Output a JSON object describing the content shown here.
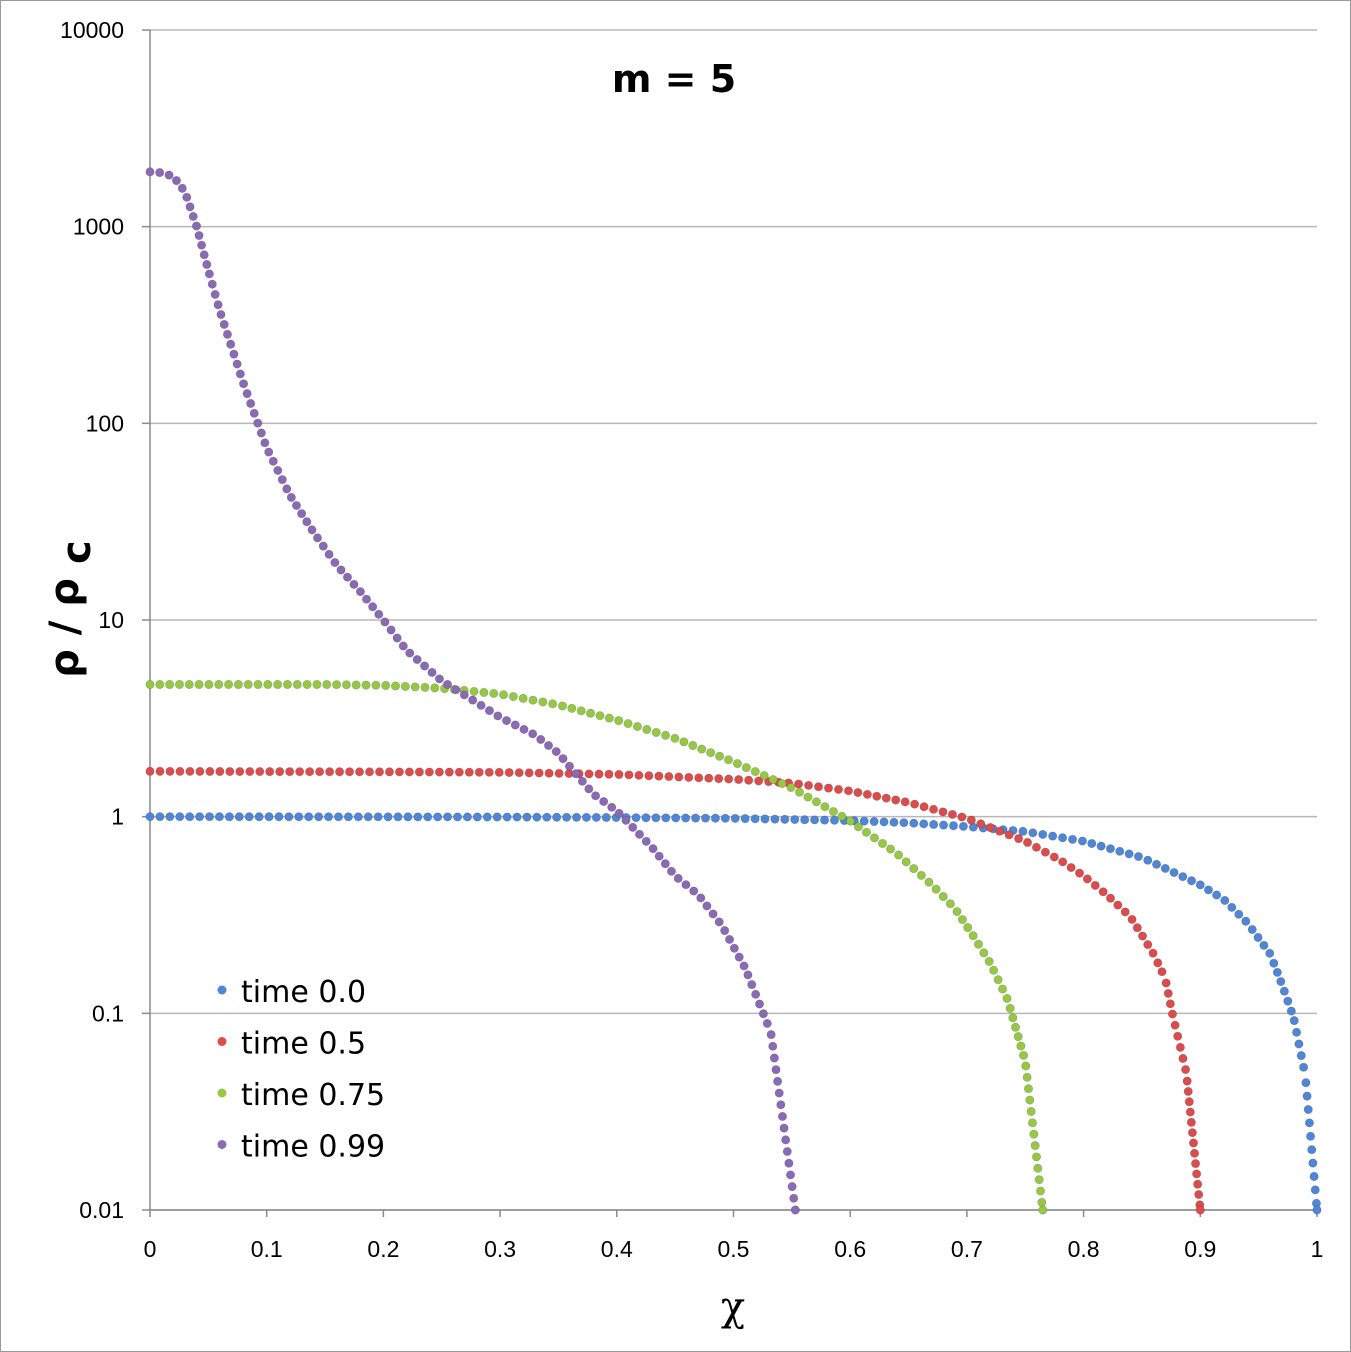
{
  "chart_data": {
    "type": "scatter",
    "title": "m = 5",
    "xlabel": "χ",
    "ylabel_main": "ρ / ρ",
    "ylabel_sub": "c",
    "yscale": "log",
    "xlim": [
      0,
      1
    ],
    "ylim": [
      0.01,
      10000
    ],
    "x_ticks": [
      "0",
      "0.1",
      "0.2",
      "0.3",
      "0.4",
      "0.5",
      "0.6",
      "0.7",
      "0.8",
      "0.9",
      "1"
    ],
    "y_ticks": [
      "10000",
      "1000",
      "100",
      "10",
      "1",
      "0.1",
      "0.01"
    ],
    "grid": "horizontal",
    "legend_position": "bottom-left",
    "series": [
      {
        "name": "time 0.0",
        "color": "#4f86d6",
        "points": [
          [
            0,
            1.0
          ],
          [
            0.1,
            0.999
          ],
          [
            0.2,
            0.998
          ],
          [
            0.3,
            0.996
          ],
          [
            0.4,
            0.99
          ],
          [
            0.5,
            0.98
          ],
          [
            0.6,
            0.955
          ],
          [
            0.65,
            0.93
          ],
          [
            0.7,
            0.89
          ],
          [
            0.75,
            0.84
          ],
          [
            0.8,
            0.75
          ],
          [
            0.85,
            0.62
          ],
          [
            0.9,
            0.45
          ],
          [
            0.92,
            0.38
          ],
          [
            0.94,
            0.29
          ],
          [
            0.96,
            0.2
          ],
          [
            0.97,
            0.14
          ],
          [
            0.98,
            0.095
          ],
          [
            0.99,
            0.048
          ],
          [
            1.0,
            0.01
          ]
        ]
      },
      {
        "name": "time 0.5",
        "color": "#db4d4d",
        "points": [
          [
            0,
            1.7
          ],
          [
            0.2,
            1.69
          ],
          [
            0.3,
            1.68
          ],
          [
            0.4,
            1.64
          ],
          [
            0.5,
            1.55
          ],
          [
            0.55,
            1.48
          ],
          [
            0.6,
            1.35
          ],
          [
            0.65,
            1.18
          ],
          [
            0.7,
            0.98
          ],
          [
            0.75,
            0.75
          ],
          [
            0.78,
            0.6
          ],
          [
            0.8,
            0.5
          ],
          [
            0.82,
            0.4
          ],
          [
            0.84,
            0.31
          ],
          [
            0.85,
            0.25
          ],
          [
            0.86,
            0.2
          ],
          [
            0.87,
            0.15
          ],
          [
            0.876,
            0.1
          ],
          [
            0.888,
            0.05
          ],
          [
            0.9,
            0.01
          ]
        ]
      },
      {
        "name": "time 0.75",
        "color": "#97c845",
        "points": [
          [
            0,
            4.7
          ],
          [
            0.15,
            4.7
          ],
          [
            0.2,
            4.65
          ],
          [
            0.25,
            4.5
          ],
          [
            0.3,
            4.2
          ],
          [
            0.35,
            3.7
          ],
          [
            0.4,
            3.1
          ],
          [
            0.45,
            2.5
          ],
          [
            0.5,
            1.9
          ],
          [
            0.55,
            1.4
          ],
          [
            0.6,
            0.95
          ],
          [
            0.64,
            0.65
          ],
          [
            0.67,
            0.45
          ],
          [
            0.69,
            0.34
          ],
          [
            0.705,
            0.25
          ],
          [
            0.72,
            0.18
          ],
          [
            0.735,
            0.117
          ],
          [
            0.75,
            0.057
          ],
          [
            0.765,
            0.01
          ]
        ]
      },
      {
        "name": "time 0.99",
        "color": "#8b6ab5",
        "points": [
          [
            0,
            1900
          ],
          [
            0.01,
            1880
          ],
          [
            0.02,
            1800
          ],
          [
            0.03,
            1500
          ],
          [
            0.04,
            1000
          ],
          [
            0.05,
            600
          ],
          [
            0.06,
            370
          ],
          [
            0.08,
            160
          ],
          [
            0.1,
            75
          ],
          [
            0.12,
            43
          ],
          [
            0.14,
            28
          ],
          [
            0.16,
            19
          ],
          [
            0.18,
            14
          ],
          [
            0.2,
            10
          ],
          [
            0.22,
            7
          ],
          [
            0.25,
            4.9
          ],
          [
            0.28,
            3.8
          ],
          [
            0.3,
            3.2
          ],
          [
            0.33,
            2.6
          ],
          [
            0.35,
            2.1
          ],
          [
            0.38,
            1.3
          ],
          [
            0.4,
            1.07
          ],
          [
            0.43,
            0.7
          ],
          [
            0.45,
            0.5
          ],
          [
            0.47,
            0.4
          ],
          [
            0.49,
            0.28
          ],
          [
            0.51,
            0.17
          ],
          [
            0.532,
            0.08
          ],
          [
            0.553,
            0.01
          ]
        ]
      }
    ]
  }
}
